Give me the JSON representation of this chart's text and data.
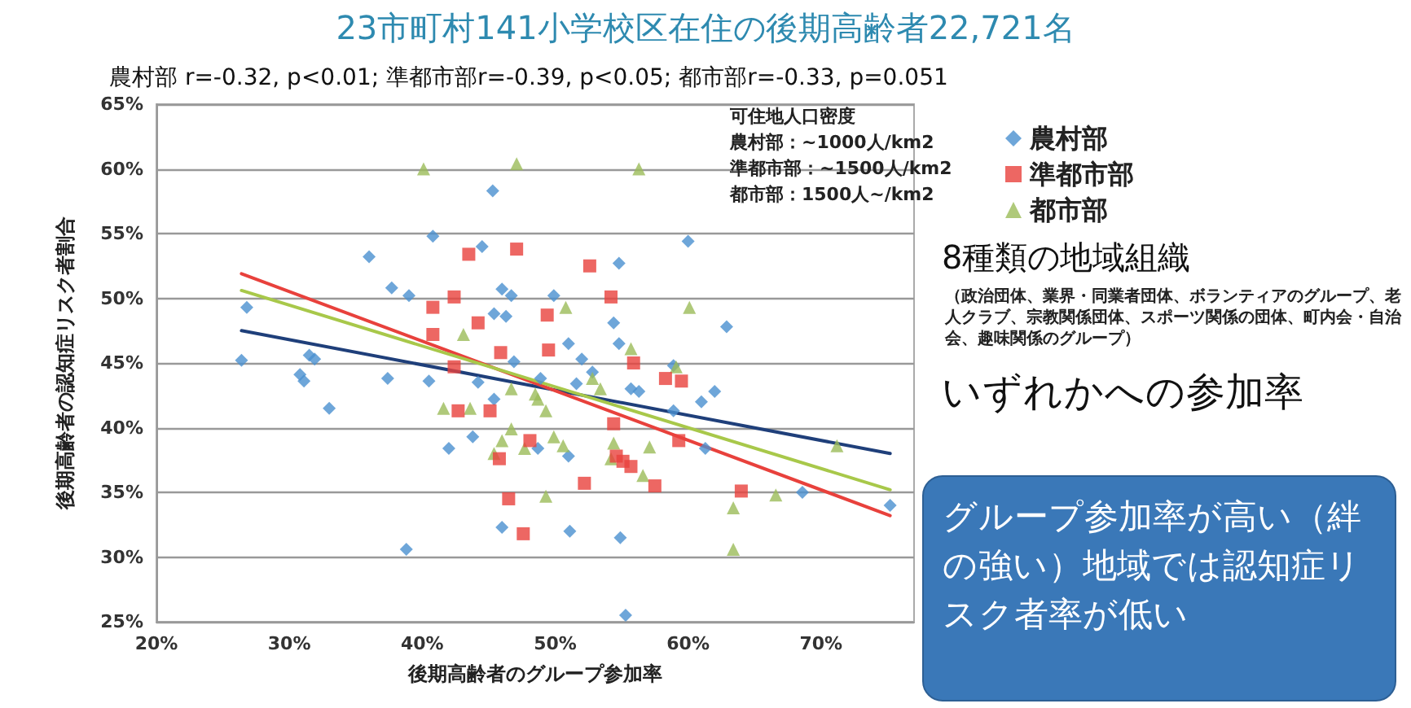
{
  "chart_data": {
    "type": "scatter",
    "title": "23市町村141小学校区在住の後期高齢者22,721名",
    "subtitle": "農村部 r=-0.32, p<0.01; 準都市部r=-0.39, p<0.05; 都市部r=-0.33, p=0.051",
    "xlabel": "後期高齢者のグループ参加率",
    "ylabel": "後期高齢者の認知症リスク者割合",
    "annotations": [
      "可住地人口密度",
      "農村部：~1000人/km2",
      "準都市部：~1500人/km2",
      "都市部：1500人~/km2",
      "8種類の地域組織",
      "（政治団体、業界・同業者団体、ボランティアのグループ、老人クラブ、宗教関係団体、スポーツ関係の団体、町内会・自治会、趣味関係のグループ）",
      "いずれかへの参加率",
      "グループ参加率が高い（絆の強い）地域では認知症リスク者率が低い"
    ],
    "xlim": [
      20,
      77
    ],
    "xticks": [
      {
        "value": 20,
        "label": "20%"
      },
      {
        "value": 30,
        "label": "30%"
      },
      {
        "value": 40,
        "label": "40%"
      },
      {
        "value": 50,
        "label": "50%"
      },
      {
        "value": 60,
        "label": "60%"
      },
      {
        "value": 70,
        "label": "70%"
      }
    ],
    "ylim": [
      25,
      65
    ],
    "yticks": [
      {
        "value": 25,
        "label": "25%"
      },
      {
        "value": 30,
        "label": "30%"
      },
      {
        "value": 35,
        "label": "35%"
      },
      {
        "value": 40,
        "label": "40%"
      },
      {
        "value": 45,
        "label": "45%"
      },
      {
        "value": 50,
        "label": "50%"
      },
      {
        "value": 55,
        "label": "55%"
      },
      {
        "value": 60,
        "label": "60%"
      },
      {
        "value": 65,
        "label": "65%"
      }
    ],
    "grid": "y",
    "legend": "top right",
    "series": [
      {
        "name": "農村部",
        "color": "#4a90d0",
        "marker": "diamond",
        "x": [
          26.8,
          26.4,
          31.5,
          31.9,
          30.8,
          31.1,
          33.0,
          36.0,
          37.7,
          39.0,
          37.4,
          40.5,
          40.8,
          38.8,
          42.0,
          43.8,
          44.2,
          44.5,
          45.3,
          45.4,
          46.0,
          46.7,
          45.4,
          46.3,
          46.0,
          46.9,
          48.7,
          48.9,
          49.9,
          51.0,
          52.0,
          52.8,
          51.6,
          51.0,
          51.1,
          54.4,
          54.8,
          54.8,
          54.9,
          55.3,
          55.7,
          56.3,
          58.9,
          58.9,
          60.0,
          61.0,
          62.0,
          61.3,
          62.9,
          68.6,
          75.2
        ],
        "values": [
          49.3,
          45.2,
          45.6,
          45.3,
          44.1,
          43.6,
          41.5,
          53.2,
          50.8,
          50.2,
          43.8,
          43.6,
          54.8,
          30.6,
          38.4,
          39.3,
          43.5,
          54.0,
          58.3,
          42.2,
          50.7,
          50.2,
          48.8,
          48.6,
          32.3,
          45.1,
          38.4,
          43.8,
          50.2,
          46.5,
          45.3,
          44.3,
          43.4,
          37.8,
          32.0,
          48.1,
          52.7,
          46.5,
          31.5,
          25.5,
          43.0,
          42.8,
          44.8,
          41.3,
          54.4,
          42.0,
          42.8,
          38.4,
          47.8,
          35.0,
          34.0
        ]
      },
      {
        "name": "準都市部",
        "color": "#e8413c",
        "marker": "square",
        "x": [
          40.8,
          40.8,
          42.4,
          42.4,
          42.7,
          43.5,
          44.2,
          45.1,
          45.8,
          45.9,
          46.5,
          47.1,
          47.6,
          48.1,
          49.4,
          49.5,
          52.2,
          52.6,
          54.2,
          54.4,
          54.6,
          55.1,
          55.7,
          55.9,
          57.5,
          58.3,
          59.3,
          59.5,
          64.0
        ],
        "values": [
          49.3,
          47.2,
          50.1,
          44.7,
          41.3,
          53.4,
          48.1,
          41.3,
          37.6,
          45.8,
          34.5,
          53.8,
          31.8,
          39.0,
          48.7,
          46.0,
          35.7,
          52.5,
          50.1,
          40.3,
          37.8,
          37.4,
          37.0,
          45.0,
          35.5,
          43.8,
          39.0,
          43.6,
          35.1
        ]
      },
      {
        "name": "都市部",
        "color": "#9bbb59",
        "marker": "triangle",
        "x": [
          40.1,
          47.1,
          56.3,
          41.6,
          43.1,
          43.6,
          45.4,
          46.0,
          46.7,
          46.7,
          47.7,
          48.5,
          48.7,
          49.3,
          49.3,
          49.9,
          50.6,
          50.8,
          52.8,
          53.4,
          54.2,
          54.4,
          55.7,
          56.6,
          57.1,
          59.1,
          60.1,
          63.4,
          63.4,
          66.6,
          71.2
        ],
        "values": [
          60.0,
          60.4,
          60.0,
          41.5,
          47.2,
          41.5,
          38.0,
          39.0,
          39.9,
          43.0,
          38.4,
          42.6,
          42.2,
          41.3,
          34.7,
          39.3,
          38.6,
          49.3,
          43.8,
          43.0,
          37.6,
          38.8,
          46.1,
          36.3,
          38.5,
          44.7,
          49.3,
          33.8,
          30.6,
          34.8,
          38.6
        ]
      },
      {
        "type": "line",
        "color": "#1f3f7a",
        "marker": "none",
        "line_style": "solid",
        "x": [
          26.4,
          75.2
        ],
        "values": [
          47.5,
          38.0
        ]
      },
      {
        "type": "line",
        "color": "#e8413c",
        "marker": "none",
        "line_style": "solid",
        "x": [
          26.4,
          75.2
        ],
        "values": [
          51.9,
          33.2
        ]
      },
      {
        "type": "line",
        "color": "#a8c84a",
        "marker": "none",
        "line_style": "solid",
        "x": [
          26.4,
          75.2
        ],
        "values": [
          50.6,
          35.2
        ]
      }
    ]
  }
}
